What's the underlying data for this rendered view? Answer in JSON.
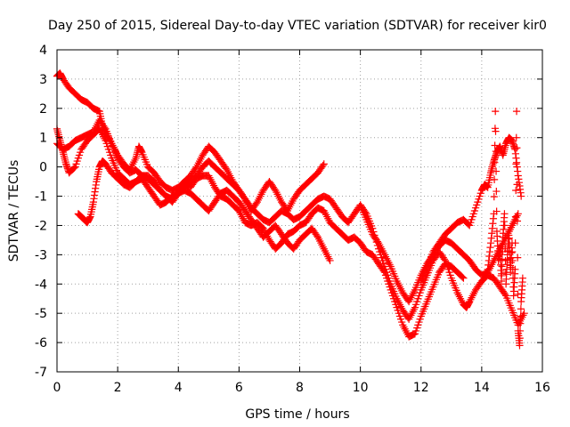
{
  "chart_data": {
    "type": "scatter",
    "title": "Day 250 of 2015, Sidereal Day-to-day VTEC variation (SDTVAR) for receiver kir0",
    "xlabel": "GPS time / hours",
    "ylabel": "SDTVAR / TECUs",
    "xlim": [
      0,
      16
    ],
    "ylim": [
      -7,
      4
    ],
    "xticks": [
      0,
      2,
      4,
      6,
      8,
      10,
      12,
      14,
      16
    ],
    "yticks": [
      -7,
      -6,
      -5,
      -4,
      -3,
      -2,
      -1,
      0,
      1,
      2,
      3,
      4
    ],
    "grid": true,
    "legend": "none",
    "marker": "plus",
    "color": "#ff0000",
    "series": [
      {
        "x": [
          0.0,
          0.1,
          0.2,
          0.4,
          0.6,
          0.8,
          1.0,
          1.2,
          1.4,
          1.5,
          1.7,
          1.9,
          2.0,
          2.2,
          2.4,
          2.6,
          2.8,
          3.0,
          3.2,
          3.4,
          3.6,
          3.8,
          4.0,
          4.2,
          4.4,
          4.6,
          4.8,
          5.0,
          5.2,
          5.4,
          5.6,
          5.8,
          6.0,
          6.2,
          6.4,
          6.6,
          6.8,
          7.0,
          7.2,
          7.4,
          7.6,
          7.8,
          8.0,
          8.2,
          8.4,
          8.6,
          8.8,
          9.0,
          9.2,
          9.4,
          9.6,
          9.8,
          10.0,
          10.2,
          10.4,
          10.6,
          10.8,
          11.0,
          11.2,
          11.4,
          11.6,
          11.8,
          12.0,
          12.2,
          12.4,
          12.6,
          12.8,
          13.0,
          13.2,
          13.4
        ],
        "y": [
          3.1,
          3.2,
          3.0,
          2.7,
          2.5,
          2.3,
          2.2,
          2.0,
          1.9,
          1.4,
          1.0,
          0.6,
          0.3,
          0.0,
          -0.2,
          -0.1,
          -0.3,
          -0.3,
          -0.5,
          -0.8,
          -1.0,
          -1.2,
          -0.9,
          -0.6,
          -0.7,
          -0.4,
          -0.3,
          -0.3,
          -0.7,
          -1.0,
          -1.1,
          -1.3,
          -1.5,
          -1.9,
          -2.0,
          -1.9,
          -2.1,
          -2.5,
          -2.8,
          -2.6,
          -2.3,
          -2.2,
          -2.0,
          -1.9,
          -1.6,
          -1.4,
          -1.5,
          -1.9,
          -2.1,
          -2.3,
          -2.5,
          -2.4,
          -2.6,
          -2.9,
          -3.0,
          -3.3,
          -3.6,
          -4.2,
          -4.8,
          -5.4,
          -5.8,
          -5.7,
          -5.1,
          -4.6,
          -4.1,
          -3.6,
          -3.3,
          -3.4,
          -3.6,
          -3.8
        ]
      },
      {
        "x": [
          0.0,
          0.1,
          0.2,
          0.3,
          0.4,
          0.6,
          0.8,
          1.0,
          1.2,
          1.4,
          1.6,
          1.8,
          2.0,
          2.2,
          2.4,
          2.6,
          2.8,
          3.0,
          3.2,
          3.4,
          3.6,
          3.8,
          4.0,
          4.2,
          4.4,
          4.6,
          4.8,
          5.0,
          5.2,
          5.4,
          5.6,
          5.8,
          6.0,
          6.2,
          6.4,
          6.6,
          6.8,
          7.0,
          7.2,
          7.4,
          7.6,
          7.8,
          8.0,
          8.2,
          8.4,
          8.6,
          8.8
        ],
        "y": [
          1.3,
          0.9,
          0.5,
          0.1,
          -0.2,
          0.0,
          0.6,
          0.9,
          1.1,
          1.3,
          0.9,
          0.3,
          -0.2,
          -0.4,
          -0.6,
          -0.5,
          -0.4,
          -0.7,
          -1.0,
          -1.3,
          -1.2,
          -1.0,
          -0.9,
          -0.7,
          -0.5,
          -0.3,
          0.0,
          0.2,
          0.0,
          -0.2,
          -0.4,
          -0.6,
          -0.8,
          -1.1,
          -1.5,
          -1.2,
          -0.8,
          -0.5,
          -0.8,
          -1.2,
          -1.5,
          -1.1,
          -0.8,
          -0.6,
          -0.4,
          -0.2,
          0.1
        ]
      },
      {
        "x": [
          0.7,
          0.8,
          0.9,
          1.0,
          1.1,
          1.2,
          1.3,
          1.4,
          1.5,
          1.6,
          1.8,
          2.0,
          2.2,
          2.4,
          2.6,
          2.8,
          3.0,
          3.2,
          3.4,
          3.6,
          3.8,
          4.0,
          4.2,
          4.4,
          4.6,
          4.8,
          5.0,
          5.2,
          5.4,
          5.6,
          5.8,
          6.0,
          6.2,
          6.4,
          6.6,
          6.8,
          7.0,
          7.2,
          7.4,
          7.6,
          7.8,
          8.0,
          8.2,
          8.4,
          8.6,
          8.8,
          9.0
        ],
        "y": [
          -1.6,
          -1.7,
          -1.8,
          -1.9,
          -1.7,
          -1.2,
          -0.5,
          0.0,
          0.2,
          0.1,
          -0.2,
          -0.4,
          -0.6,
          -0.7,
          -0.5,
          -0.3,
          -0.4,
          -0.6,
          -0.8,
          -1.0,
          -1.1,
          -0.9,
          -0.8,
          -0.9,
          -1.1,
          -1.3,
          -1.5,
          -1.2,
          -0.9,
          -0.8,
          -1.0,
          -1.2,
          -1.5,
          -1.8,
          -2.1,
          -2.4,
          -2.2,
          -2.0,
          -2.3,
          -2.6,
          -2.8,
          -2.5,
          -2.3,
          -2.1,
          -2.4,
          -2.8,
          -3.2
        ]
      },
      {
        "x": [
          0.0,
          0.2,
          0.4,
          0.6,
          0.8,
          1.0,
          1.2,
          1.4,
          1.6,
          1.8,
          2.0,
          2.2,
          2.4,
          2.6,
          2.7,
          2.8,
          3.0,
          3.2,
          3.4,
          3.6,
          3.8,
          4.0,
          4.2,
          4.4,
          4.6,
          4.8,
          5.0,
          5.2,
          5.4,
          5.6,
          5.8,
          6.0,
          6.2,
          6.4,
          6.6,
          6.8,
          7.0,
          7.2,
          7.4,
          7.6,
          7.8,
          8.0,
          8.2,
          8.4,
          8.6,
          8.8,
          9.0,
          9.2,
          9.4,
          9.6,
          9.8,
          10.0,
          10.2,
          10.4,
          10.6,
          10.8,
          11.0,
          11.2,
          11.4,
          11.6,
          11.8,
          12.0,
          12.2,
          12.4,
          12.6,
          12.8,
          13.0,
          13.2,
          13.4,
          13.6,
          13.8,
          14.0,
          14.2,
          14.4,
          14.6,
          14.8,
          15.0,
          15.2
        ],
        "y": [
          0.8,
          0.6,
          0.7,
          0.9,
          1.0,
          1.1,
          1.2,
          1.6,
          1.3,
          0.8,
          0.4,
          0.1,
          -0.1,
          0.3,
          0.7,
          0.5,
          0.0,
          -0.2,
          -0.5,
          -0.7,
          -0.8,
          -0.7,
          -0.5,
          -0.3,
          0.0,
          0.4,
          0.7,
          0.5,
          0.2,
          -0.1,
          -0.5,
          -0.8,
          -1.1,
          -1.4,
          -1.6,
          -1.8,
          -1.9,
          -1.7,
          -1.5,
          -1.6,
          -1.8,
          -1.7,
          -1.5,
          -1.3,
          -1.1,
          -1.0,
          -1.1,
          -1.4,
          -1.7,
          -1.9,
          -1.6,
          -1.3,
          -1.8,
          -2.3,
          -2.6,
          -3.0,
          -3.4,
          -3.9,
          -4.3,
          -4.6,
          -4.2,
          -3.7,
          -3.3,
          -3.0,
          -2.7,
          -2.5,
          -2.6,
          -2.8,
          -3.0,
          -3.2,
          -3.5,
          -3.7,
          -3.6,
          -3.2,
          -2.8,
          -2.4,
          -2.0,
          -1.6
        ]
      },
      {
        "x": [
          10.0,
          10.2,
          10.4,
          10.6,
          10.8,
          11.0,
          11.2,
          11.4,
          11.6,
          11.8,
          12.0,
          12.2,
          12.4,
          12.6,
          12.8,
          13.0,
          13.2,
          13.4,
          13.5,
          13.6,
          13.8,
          14.0,
          14.2,
          14.4,
          14.6,
          14.8,
          15.0,
          15.2,
          15.4
        ],
        "y": [
          -1.3,
          -1.6,
          -2.1,
          -2.8,
          -3.4,
          -4.0,
          -4.5,
          -4.9,
          -5.2,
          -4.8,
          -4.2,
          -3.7,
          -3.2,
          -2.9,
          -3.2,
          -3.8,
          -4.3,
          -4.7,
          -4.8,
          -4.6,
          -4.2,
          -3.9,
          -3.7,
          -3.8,
          -4.1,
          -4.4,
          -4.9,
          -5.4,
          -5.0
        ]
      },
      {
        "x": [
          12.0,
          12.2,
          12.4,
          12.6,
          12.8,
          13.0,
          13.2,
          13.4,
          13.6,
          13.8,
          14.0,
          14.1,
          14.2,
          14.3,
          14.4,
          14.5,
          14.6,
          14.7,
          14.8,
          14.9,
          15.0,
          15.1,
          15.2,
          15.3
        ],
        "y": [
          -3.9,
          -3.4,
          -2.9,
          -2.6,
          -2.3,
          -2.1,
          -1.9,
          -1.8,
          -2.0,
          -1.4,
          -0.8,
          -0.6,
          -0.7,
          -0.2,
          0.2,
          0.5,
          0.7,
          0.4,
          0.8,
          1.0,
          0.9,
          0.6,
          -0.3,
          -1.0
        ]
      },
      {
        "x": [
          14.2,
          14.3,
          14.4,
          14.45,
          14.5,
          14.55,
          14.6,
          14.65,
          14.7,
          14.75,
          14.8,
          14.85,
          14.9,
          14.95,
          15.0,
          15.05,
          15.1,
          15.15,
          15.2,
          15.25,
          15.3,
          15.35
        ],
        "y": [
          -3.5,
          -2.6,
          -1.6,
          1.9,
          -2.2,
          -3.2,
          -2.8,
          -3.9,
          -2.4,
          -1.6,
          -4.0,
          -3.0,
          -2.2,
          -3.6,
          -2.6,
          -4.4,
          -3.5,
          1.9,
          -5.6,
          -6.1,
          -4.6,
          -3.8
        ]
      }
    ]
  }
}
